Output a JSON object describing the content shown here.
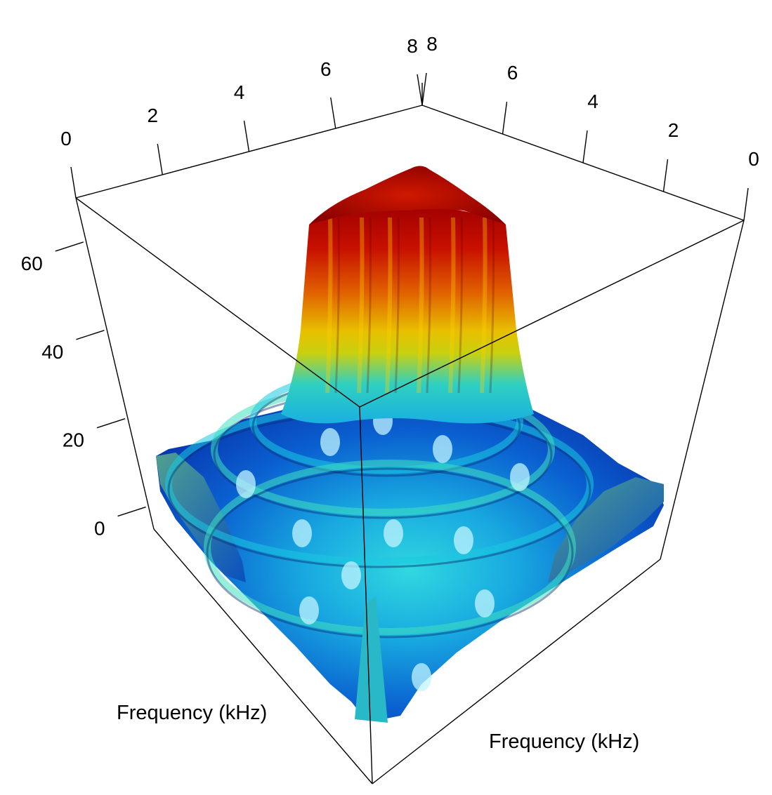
{
  "chart_data": {
    "type": "surface3d",
    "x_axis": {
      "label": "Frequency (kHz)",
      "ticks": [
        0,
        2,
        4,
        6,
        8
      ],
      "range": [
        0,
        8
      ]
    },
    "y_axis": {
      "label": "Frequency (kHz)",
      "ticks": [
        0,
        2,
        4,
        6,
        8
      ],
      "range": [
        0,
        8
      ]
    },
    "z_axis": {
      "label": "",
      "ticks": [
        0,
        20,
        40,
        60
      ],
      "range": [
        -5,
        70
      ]
    },
    "surface": {
      "description_values": {
        "center_peak_z": 69,
        "plateau_z": 55,
        "base_z": 2,
        "center_x": 8,
        "center_y": 8
      }
    },
    "colormap": [
      "#0000c8",
      "#0070e0",
      "#19c8e0",
      "#40e0c0",
      "#b0d020",
      "#f0e000",
      "#f08000",
      "#e02000",
      "#a00000"
    ],
    "box": true,
    "grid": false
  }
}
